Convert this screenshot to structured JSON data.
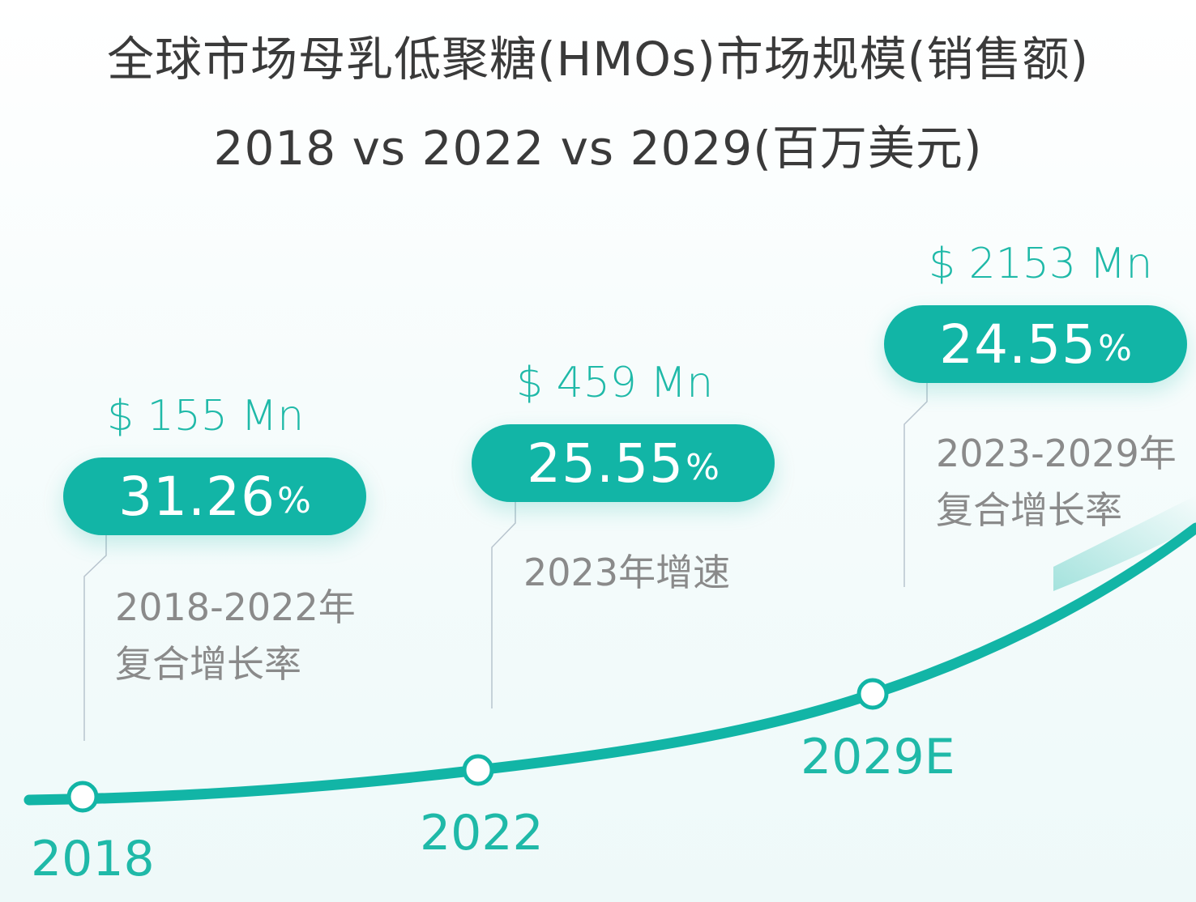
{
  "title": {
    "line1": "全球市场母乳低聚糖(HMOs)市场规模(销售额)",
    "line2": "2018 vs 2022 vs 2029(百万美元)"
  },
  "colors": {
    "accent": "#12b5a6",
    "text_accent": "#1fb9a8",
    "title": "#3a3a3a",
    "muted": "#8a8a8a"
  },
  "chart_data": {
    "type": "line",
    "x": [
      "2018",
      "2022",
      "2029E"
    ],
    "values": [
      155,
      459,
      2153
    ],
    "unit": "百万美元",
    "points": [
      {
        "year": "2018",
        "value_label": "$ 155 Mn",
        "rate": "31.26",
        "rate_unit": "%",
        "desc_lines": [
          "2018-2022年",
          "复合增长率"
        ]
      },
      {
        "year": "2022",
        "value_label": "$ 459 Mn",
        "rate": "25.55",
        "rate_unit": "%",
        "desc_lines": [
          "2023年增速"
        ]
      },
      {
        "year": "2029E",
        "value_label": "$ 2153 Mn",
        "rate": "24.55",
        "rate_unit": "%",
        "desc_lines": [
          "2023-2029年",
          "复合增长率"
        ]
      }
    ]
  }
}
